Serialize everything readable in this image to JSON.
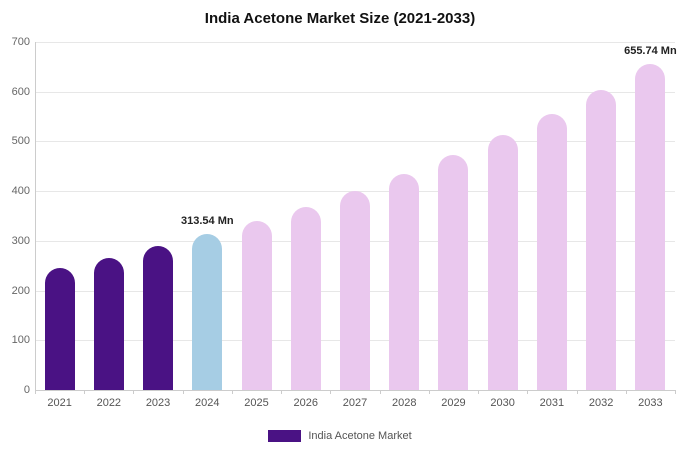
{
  "title": "India Acetone Market Size (2021-2033)",
  "legend": {
    "label": "India Acetone Market",
    "swatch_color": "#4a1284"
  },
  "chart_data": {
    "type": "bar",
    "title": "India Acetone Market Size (2021-2033)",
    "categories": [
      "2021",
      "2022",
      "2023",
      "2024",
      "2025",
      "2026",
      "2027",
      "2028",
      "2029",
      "2030",
      "2031",
      "2032",
      "2033"
    ],
    "values": [
      245,
      266,
      289,
      313.54,
      340,
      369,
      401,
      435,
      472,
      513,
      556,
      604,
      655.74
    ],
    "unit": "Mn",
    "bar_colors": [
      "#4a1284",
      "#4a1284",
      "#4a1284",
      "#a6cde4",
      "#eac8ee",
      "#eac8ee",
      "#eac8ee",
      "#eac8ee",
      "#eac8ee",
      "#eac8ee",
      "#eac8ee",
      "#eac8ee",
      "#eac8ee"
    ],
    "color_legend": {
      "historical": "#4a1284",
      "base_year_2024": "#a6cde4",
      "forecast": "#eac8ee"
    },
    "xlabel": "",
    "ylabel": "",
    "ylim": [
      0,
      700
    ],
    "yticks": [
      0,
      100,
      200,
      300,
      400,
      500,
      600,
      700
    ],
    "grid": true,
    "legend_position": "bottom",
    "annotations": [
      {
        "category": "2024",
        "text": "313.54 Mn"
      },
      {
        "category": "2033",
        "text": "655.74 Mn"
      }
    ]
  }
}
